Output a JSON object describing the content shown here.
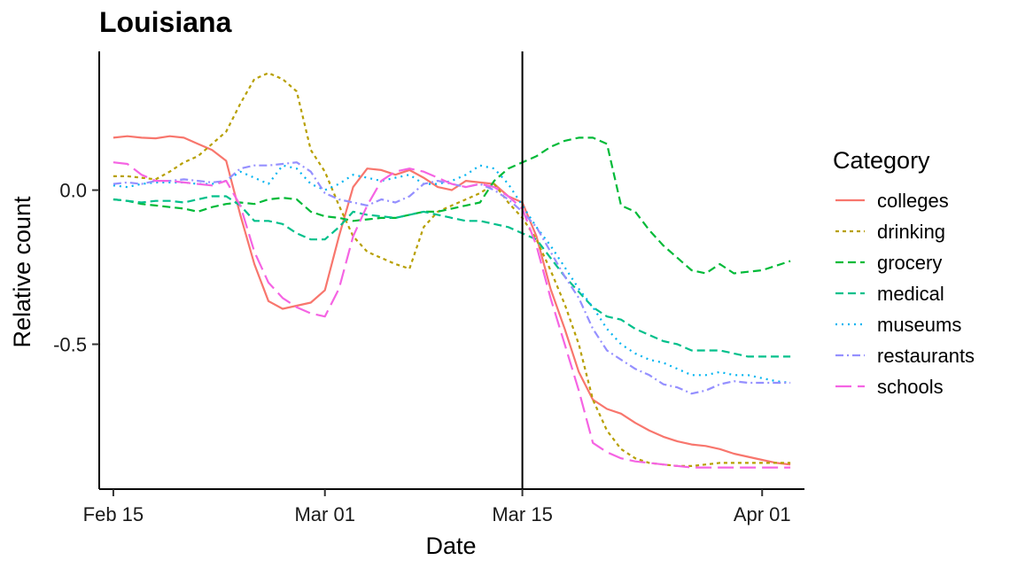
{
  "chart_data": {
    "type": "line",
    "title": "Louisiana",
    "xlabel": "Date",
    "ylabel": "Relative count",
    "x_range": [
      "2020-02-14",
      "2020-04-04"
    ],
    "ylim": [
      -0.97,
      0.45
    ],
    "x_ticks": [
      {
        "date": "2020-02-15",
        "label": "Feb 15"
      },
      {
        "date": "2020-03-01",
        "label": "Mar 01"
      },
      {
        "date": "2020-03-15",
        "label": "Mar 15"
      },
      {
        "date": "2020-04-01",
        "label": "Apr 01"
      }
    ],
    "y_ticks": [
      {
        "value": 0.0,
        "label": "0.0"
      },
      {
        "value": -0.5,
        "label": "-0.5"
      }
    ],
    "vline": "2020-03-15",
    "grid": false,
    "legend": {
      "title": "Category",
      "position": "right"
    },
    "x": [
      "2020-02-15",
      "2020-02-16",
      "2020-02-17",
      "2020-02-18",
      "2020-02-19",
      "2020-02-20",
      "2020-02-21",
      "2020-02-22",
      "2020-02-23",
      "2020-02-24",
      "2020-02-25",
      "2020-02-26",
      "2020-02-27",
      "2020-02-28",
      "2020-02-29",
      "2020-03-01",
      "2020-03-02",
      "2020-03-03",
      "2020-03-04",
      "2020-03-05",
      "2020-03-06",
      "2020-03-07",
      "2020-03-08",
      "2020-03-09",
      "2020-03-10",
      "2020-03-11",
      "2020-03-12",
      "2020-03-13",
      "2020-03-14",
      "2020-03-15",
      "2020-03-16",
      "2020-03-17",
      "2020-03-18",
      "2020-03-19",
      "2020-03-20",
      "2020-03-21",
      "2020-03-22",
      "2020-03-23",
      "2020-03-24",
      "2020-03-25",
      "2020-03-26",
      "2020-03-27",
      "2020-03-28",
      "2020-03-29",
      "2020-03-30",
      "2020-03-31",
      "2020-04-01",
      "2020-04-02",
      "2020-04-03"
    ],
    "series": [
      {
        "name": "colleges",
        "color": "#F8766D",
        "dash": "",
        "values": [
          0.17,
          0.175,
          0.17,
          0.168,
          0.175,
          0.17,
          0.15,
          0.13,
          0.095,
          -0.08,
          -0.24,
          -0.36,
          -0.385,
          -0.375,
          -0.365,
          -0.325,
          -0.15,
          0.01,
          0.07,
          0.065,
          0.05,
          0.065,
          0.04,
          0.01,
          0.0,
          0.03,
          0.025,
          0.02,
          -0.02,
          -0.04,
          -0.15,
          -0.32,
          -0.45,
          -0.59,
          -0.68,
          -0.71,
          -0.725,
          -0.755,
          -0.78,
          -0.8,
          -0.815,
          -0.825,
          -0.83,
          -0.84,
          -0.855,
          -0.865,
          -0.875,
          -0.885,
          -0.89
        ]
      },
      {
        "name": "drinking",
        "color": "#B79F00",
        "dash": "4,4",
        "values": [
          0.045,
          0.045,
          0.04,
          0.035,
          0.06,
          0.09,
          0.11,
          0.15,
          0.19,
          0.28,
          0.36,
          0.38,
          0.36,
          0.32,
          0.13,
          0.06,
          -0.05,
          -0.15,
          -0.2,
          -0.22,
          -0.24,
          -0.255,
          -0.12,
          -0.07,
          -0.05,
          -0.03,
          -0.01,
          0.02,
          -0.04,
          -0.09,
          -0.16,
          -0.26,
          -0.37,
          -0.5,
          -0.68,
          -0.78,
          -0.84,
          -0.87,
          -0.885,
          -0.89,
          -0.895,
          -0.895,
          -0.89,
          -0.885,
          -0.885,
          -0.885,
          -0.885,
          -0.885,
          -0.885
        ]
      },
      {
        "name": "grocery",
        "color": "#00BA38",
        "dash": "9,5",
        "values": [
          -0.03,
          -0.035,
          -0.045,
          -0.05,
          -0.055,
          -0.06,
          -0.07,
          -0.055,
          -0.045,
          -0.04,
          -0.045,
          -0.03,
          -0.025,
          -0.03,
          -0.07,
          -0.085,
          -0.09,
          -0.1,
          -0.095,
          -0.09,
          -0.09,
          -0.08,
          -0.07,
          -0.07,
          -0.06,
          -0.05,
          -0.04,
          0.03,
          0.07,
          0.09,
          0.11,
          0.14,
          0.16,
          0.17,
          0.17,
          0.15,
          -0.05,
          -0.07,
          -0.13,
          -0.18,
          -0.22,
          -0.26,
          -0.27,
          -0.24,
          -0.27,
          -0.265,
          -0.26,
          -0.245,
          -0.23
        ]
      },
      {
        "name": "medical",
        "color": "#00C08B",
        "dash": "9,5",
        "values": [
          -0.03,
          -0.035,
          -0.04,
          -0.035,
          -0.035,
          -0.04,
          -0.03,
          -0.02,
          -0.02,
          -0.05,
          -0.1,
          -0.1,
          -0.11,
          -0.14,
          -0.16,
          -0.16,
          -0.12,
          -0.07,
          -0.08,
          -0.085,
          -0.09,
          -0.08,
          -0.07,
          -0.08,
          -0.09,
          -0.1,
          -0.1,
          -0.11,
          -0.12,
          -0.14,
          -0.16,
          -0.22,
          -0.28,
          -0.33,
          -0.38,
          -0.41,
          -0.42,
          -0.45,
          -0.47,
          -0.49,
          -0.5,
          -0.52,
          -0.52,
          -0.52,
          -0.53,
          -0.54,
          -0.54,
          -0.54,
          -0.54
        ]
      },
      {
        "name": "museums",
        "color": "#00B4F0",
        "dash": "2,5",
        "values": [
          0.015,
          0.01,
          0.02,
          0.025,
          0.025,
          0.025,
          0.02,
          0.02,
          0.03,
          0.06,
          0.04,
          0.02,
          0.08,
          0.07,
          0.02,
          0.0,
          0.02,
          0.05,
          0.04,
          0.03,
          0.04,
          0.05,
          0.02,
          0.02,
          0.03,
          0.05,
          0.08,
          0.07,
          0.02,
          -0.05,
          -0.12,
          -0.18,
          -0.25,
          -0.32,
          -0.38,
          -0.45,
          -0.5,
          -0.53,
          -0.55,
          -0.56,
          -0.58,
          -0.6,
          -0.6,
          -0.59,
          -0.6,
          -0.6,
          -0.61,
          -0.62,
          -0.625
        ]
      },
      {
        "name": "restaurants",
        "color": "#9590FF",
        "dash": "9,4,2,4",
        "values": [
          0.02,
          0.025,
          0.02,
          0.03,
          0.03,
          0.035,
          0.03,
          0.025,
          0.03,
          0.07,
          0.08,
          0.08,
          0.085,
          0.09,
          0.06,
          -0.01,
          -0.03,
          -0.04,
          -0.05,
          -0.03,
          -0.04,
          -0.02,
          0.02,
          0.03,
          0.02,
          0.01,
          0.02,
          0.0,
          -0.03,
          -0.07,
          -0.12,
          -0.2,
          -0.28,
          -0.35,
          -0.45,
          -0.52,
          -0.55,
          -0.58,
          -0.6,
          -0.63,
          -0.64,
          -0.66,
          -0.65,
          -0.63,
          -0.62,
          -0.625,
          -0.625,
          -0.625,
          -0.625
        ]
      },
      {
        "name": "schools",
        "color": "#F564E3",
        "dash": "18,7",
        "values": [
          0.09,
          0.085,
          0.05,
          0.03,
          0.03,
          0.025,
          0.02,
          0.015,
          0.03,
          -0.05,
          -0.2,
          -0.3,
          -0.35,
          -0.38,
          -0.4,
          -0.41,
          -0.32,
          -0.15,
          -0.05,
          0.03,
          0.06,
          0.07,
          0.06,
          0.04,
          0.02,
          0.01,
          0.02,
          0.01,
          -0.02,
          -0.06,
          -0.18,
          -0.35,
          -0.5,
          -0.65,
          -0.82,
          -0.85,
          -0.87,
          -0.88,
          -0.885,
          -0.89,
          -0.895,
          -0.9,
          -0.9,
          -0.9,
          -0.9,
          -0.9,
          -0.9,
          -0.9,
          -0.9
        ]
      }
    ]
  }
}
